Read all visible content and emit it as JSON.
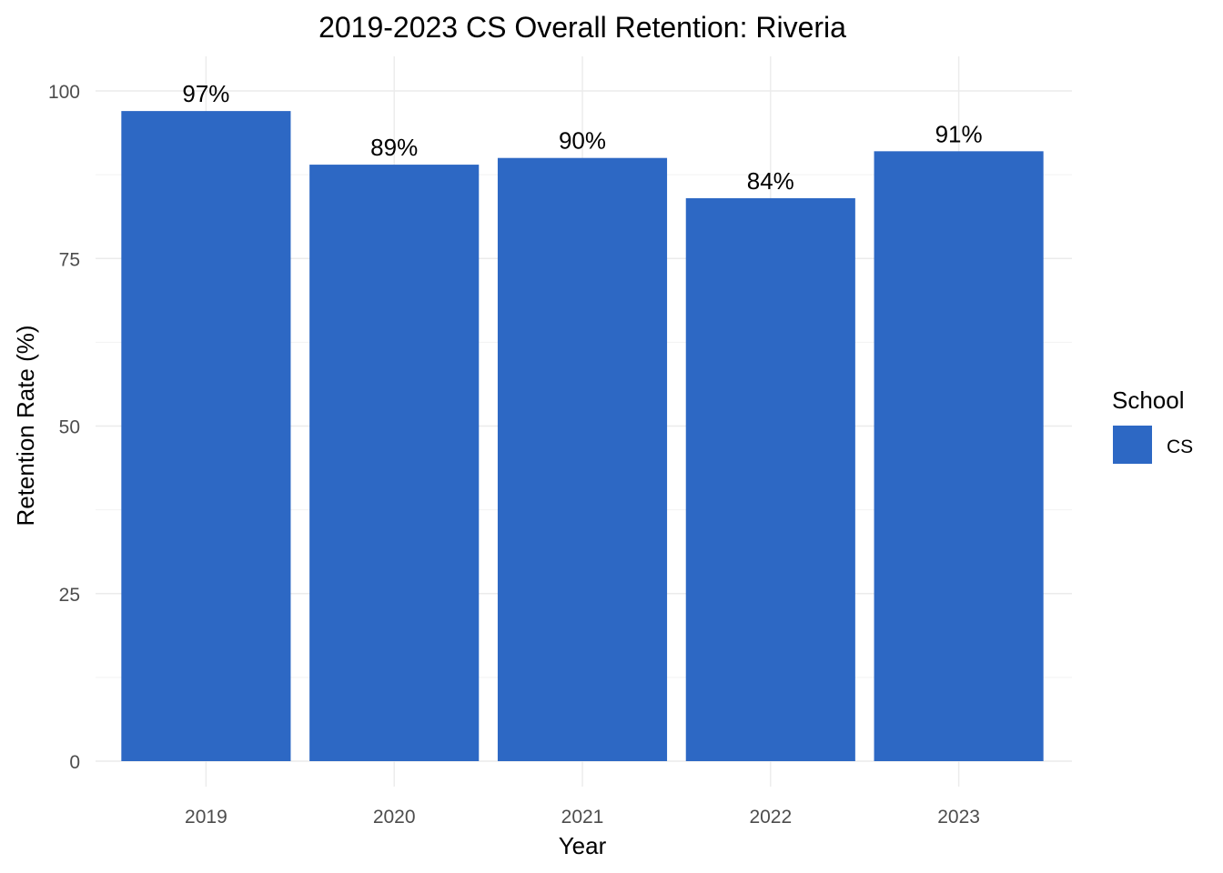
{
  "chart_data": {
    "type": "bar",
    "title": "2019-2023 CS Overall Retention: Riveria",
    "xlabel": "Year",
    "ylabel": "Retention Rate (%)",
    "categories": [
      "2019",
      "2020",
      "2021",
      "2022",
      "2023"
    ],
    "series": [
      {
        "name": "CS",
        "values": [
          97,
          89,
          90,
          84,
          91
        ],
        "data_labels": [
          "97%",
          "89%",
          "90%",
          "84%",
          "91%"
        ],
        "color": "#2D68C4"
      }
    ],
    "ylim": [
      0,
      102.5
    ],
    "yticks": [
      0,
      25,
      50,
      75,
      100
    ],
    "ytick_labels": [
      "0",
      "25",
      "50",
      "75",
      "100"
    ],
    "grid": true,
    "legend": {
      "title": "School",
      "position": "right",
      "entries": [
        "CS"
      ]
    }
  }
}
